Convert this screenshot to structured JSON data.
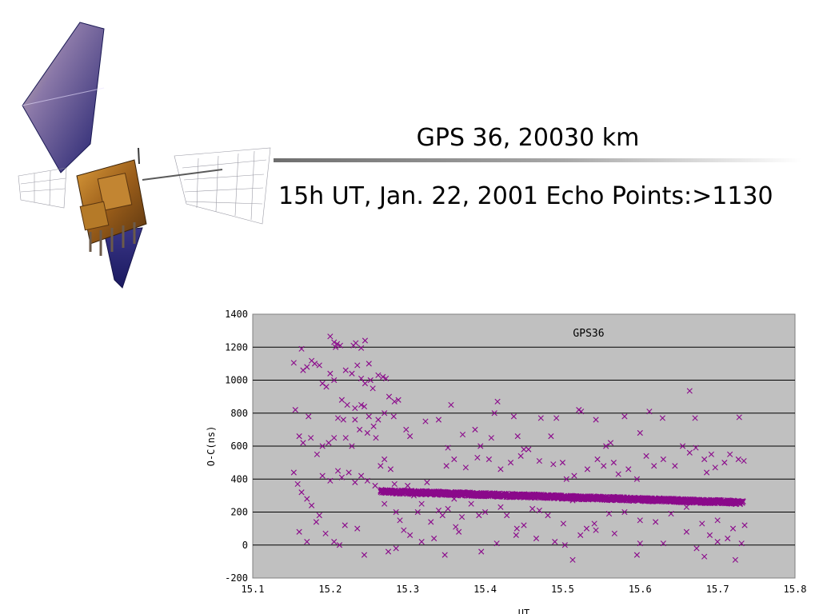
{
  "slide": {
    "title": "GPS 36,  20030 km",
    "subtitle": "15h UT, Jan. 22, 2001  Echo Points:>1130"
  },
  "satellite_image": {
    "icon": "gps-satellite-icon",
    "colors": {
      "panel_dark": "#2c2a78",
      "panel_light": "#c9b49a",
      "body": "#a8701e"
    }
  },
  "chart_data": {
    "type": "scatter",
    "title": "GPS36",
    "xlabel": "UT",
    "ylabel": "O-C(ns)",
    "xlim": [
      15.1,
      15.8
    ],
    "ylim": [
      -200,
      1400
    ],
    "xticks": [
      "15.1",
      "15.2",
      "15.3",
      "15.4",
      "15.5",
      "15.6",
      "15.7",
      "15.8"
    ],
    "yticks": [
      "-200",
      "0",
      "200",
      "400",
      "600",
      "800",
      "1000",
      "1200",
      "1400"
    ],
    "grid": "horizontal",
    "background": "#c0c0c0",
    "marker": "x",
    "color": "#8b0a8b",
    "series": [
      {
        "trend_band": {
          "x_range": [
            15.265,
            15.733
          ],
          "y_start": 325,
          "y_end": 258,
          "spread": 22,
          "density": 1400
        },
        "points": [
          [
            15.153,
            1105
          ],
          [
            15.163,
            1190
          ],
          [
            15.165,
            1060
          ],
          [
            15.17,
            1080
          ],
          [
            15.176,
            1118
          ],
          [
            15.18,
            1100
          ],
          [
            15.186,
            1090
          ],
          [
            15.2,
            1265
          ],
          [
            15.205,
            1230
          ],
          [
            15.207,
            1200
          ],
          [
            15.209,
            1220
          ],
          [
            15.213,
            1210
          ],
          [
            15.23,
            1210
          ],
          [
            15.233,
            1225
          ],
          [
            15.24,
            1195
          ],
          [
            15.245,
            1240
          ],
          [
            15.25,
            1100
          ],
          [
            15.235,
            1090
          ],
          [
            15.228,
            1040
          ],
          [
            15.22,
            1060
          ],
          [
            15.2,
            1040
          ],
          [
            15.19,
            980
          ],
          [
            15.195,
            960
          ],
          [
            15.205,
            1000
          ],
          [
            15.24,
            1010
          ],
          [
            15.245,
            980
          ],
          [
            15.252,
            1000
          ],
          [
            15.255,
            950
          ],
          [
            15.262,
            1030
          ],
          [
            15.268,
            1020
          ],
          [
            15.272,
            1010
          ],
          [
            15.276,
            900
          ],
          [
            15.283,
            870
          ],
          [
            15.288,
            880
          ],
          [
            15.215,
            880
          ],
          [
            15.222,
            850
          ],
          [
            15.24,
            850
          ],
          [
            15.244,
            840
          ],
          [
            15.232,
            830
          ],
          [
            15.155,
            820
          ],
          [
            15.172,
            780
          ],
          [
            15.21,
            770
          ],
          [
            15.217,
            760
          ],
          [
            15.232,
            760
          ],
          [
            15.25,
            780
          ],
          [
            15.256,
            720
          ],
          [
            15.262,
            760
          ],
          [
            15.27,
            800
          ],
          [
            15.282,
            780
          ],
          [
            15.16,
            660
          ],
          [
            15.165,
            620
          ],
          [
            15.175,
            650
          ],
          [
            15.183,
            550
          ],
          [
            15.19,
            600
          ],
          [
            15.198,
            620
          ],
          [
            15.205,
            650
          ],
          [
            15.22,
            650
          ],
          [
            15.228,
            600
          ],
          [
            15.238,
            700
          ],
          [
            15.248,
            680
          ],
          [
            15.259,
            650
          ],
          [
            15.298,
            700
          ],
          [
            15.303,
            660
          ],
          [
            15.323,
            750
          ],
          [
            15.34,
            760
          ],
          [
            15.352,
            590
          ],
          [
            15.356,
            850
          ],
          [
            15.371,
            670
          ],
          [
            15.387,
            700
          ],
          [
            15.394,
            600
          ],
          [
            15.408,
            650
          ],
          [
            15.412,
            800
          ],
          [
            15.416,
            870
          ],
          [
            15.437,
            780
          ],
          [
            15.442,
            660
          ],
          [
            15.45,
            580
          ],
          [
            15.472,
            770
          ],
          [
            15.485,
            660
          ],
          [
            15.492,
            770
          ],
          [
            15.521,
            820
          ],
          [
            15.524,
            810
          ],
          [
            15.543,
            760
          ],
          [
            15.556,
            600
          ],
          [
            15.562,
            620
          ],
          [
            15.58,
            780
          ],
          [
            15.6,
            680
          ],
          [
            15.612,
            810
          ],
          [
            15.629,
            770
          ],
          [
            15.655,
            600
          ],
          [
            15.664,
            935
          ],
          [
            15.671,
            770
          ],
          [
            15.683,
            520
          ],
          [
            15.692,
            550
          ],
          [
            15.716,
            550
          ],
          [
            15.728,
            775
          ],
          [
            15.153,
            440
          ],
          [
            15.158,
            370
          ],
          [
            15.163,
            320
          ],
          [
            15.17,
            280
          ],
          [
            15.176,
            240
          ],
          [
            15.186,
            180
          ],
          [
            15.19,
            420
          ],
          [
            15.2,
            390
          ],
          [
            15.21,
            450
          ],
          [
            15.215,
            410
          ],
          [
            15.224,
            440
          ],
          [
            15.232,
            380
          ],
          [
            15.24,
            420
          ],
          [
            15.248,
            390
          ],
          [
            15.258,
            360
          ],
          [
            15.283,
            370
          ],
          [
            15.3,
            360
          ],
          [
            15.308,
            300
          ],
          [
            15.313,
            200
          ],
          [
            15.318,
            250
          ],
          [
            15.325,
            380
          ],
          [
            15.33,
            140
          ],
          [
            15.34,
            210
          ],
          [
            15.345,
            180
          ],
          [
            15.352,
            220
          ],
          [
            15.36,
            280
          ],
          [
            15.362,
            110
          ],
          [
            15.37,
            170
          ],
          [
            15.382,
            250
          ],
          [
            15.392,
            180
          ],
          [
            15.4,
            200
          ],
          [
            15.42,
            230
          ],
          [
            15.428,
            180
          ],
          [
            15.441,
            100
          ],
          [
            15.45,
            120
          ],
          [
            15.461,
            220
          ],
          [
            15.47,
            210
          ],
          [
            15.481,
            180
          ],
          [
            15.501,
            130
          ],
          [
            15.513,
            270
          ],
          [
            15.531,
            100
          ],
          [
            15.541,
            130
          ],
          [
            15.56,
            190
          ],
          [
            15.58,
            200
          ],
          [
            15.6,
            150
          ],
          [
            15.62,
            140
          ],
          [
            15.64,
            190
          ],
          [
            15.66,
            230
          ],
          [
            15.68,
            130
          ],
          [
            15.7,
            150
          ],
          [
            15.72,
            100
          ],
          [
            15.735,
            120
          ],
          [
            15.16,
            80
          ],
          [
            15.17,
            20
          ],
          [
            15.182,
            140
          ],
          [
            15.194,
            70
          ],
          [
            15.205,
            20
          ],
          [
            15.212,
            0
          ],
          [
            15.219,
            120
          ],
          [
            15.235,
            100
          ],
          [
            15.244,
            -60
          ],
          [
            15.275,
            -40
          ],
          [
            15.285,
            -20
          ],
          [
            15.303,
            60
          ],
          [
            15.318,
            20
          ],
          [
            15.334,
            40
          ],
          [
            15.348,
            -60
          ],
          [
            15.366,
            80
          ],
          [
            15.395,
            -40
          ],
          [
            15.415,
            10
          ],
          [
            15.44,
            60
          ],
          [
            15.466,
            40
          ],
          [
            15.49,
            20
          ],
          [
            15.503,
            0
          ],
          [
            15.513,
            -90
          ],
          [
            15.523,
            60
          ],
          [
            15.543,
            90
          ],
          [
            15.567,
            70
          ],
          [
            15.596,
            -60
          ],
          [
            15.6,
            10
          ],
          [
            15.63,
            10
          ],
          [
            15.66,
            80
          ],
          [
            15.673,
            -20
          ],
          [
            15.683,
            -70
          ],
          [
            15.69,
            60
          ],
          [
            15.7,
            20
          ],
          [
            15.713,
            40
          ],
          [
            15.723,
            -90
          ],
          [
            15.731,
            10
          ],
          [
            15.35,
            480
          ],
          [
            15.36,
            520
          ],
          [
            15.375,
            470
          ],
          [
            15.39,
            530
          ],
          [
            15.405,
            520
          ],
          [
            15.42,
            460
          ],
          [
            15.433,
            500
          ],
          [
            15.446,
            540
          ],
          [
            15.456,
            580
          ],
          [
            15.47,
            510
          ],
          [
            15.488,
            490
          ],
          [
            15.505,
            400
          ],
          [
            15.515,
            420
          ],
          [
            15.532,
            460
          ],
          [
            15.545,
            520
          ],
          [
            15.553,
            480
          ],
          [
            15.566,
            500
          ],
          [
            15.572,
            430
          ],
          [
            15.585,
            460
          ],
          [
            15.596,
            400
          ],
          [
            15.608,
            540
          ],
          [
            15.618,
            480
          ],
          [
            15.63,
            520
          ],
          [
            15.645,
            480
          ],
          [
            15.664,
            560
          ],
          [
            15.672,
            590
          ],
          [
            15.686,
            440
          ],
          [
            15.697,
            470
          ],
          [
            15.709,
            500
          ],
          [
            15.727,
            520
          ],
          [
            15.734,
            510
          ],
          [
            15.5,
            500
          ],
          [
            15.27,
            250
          ],
          [
            15.285,
            200
          ],
          [
            15.29,
            150
          ],
          [
            15.295,
            90
          ],
          [
            15.265,
            480
          ],
          [
            15.27,
            520
          ],
          [
            15.278,
            460
          ]
        ]
      }
    ]
  }
}
